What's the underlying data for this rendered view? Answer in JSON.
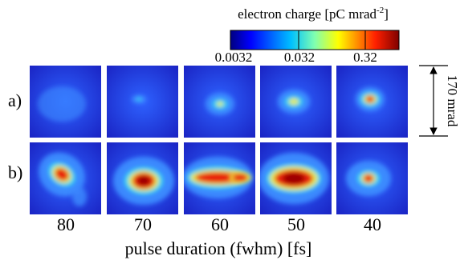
{
  "colorbar": {
    "label": "electron charge [pC mrad",
    "label_superscript": "-2",
    "label_end": "]",
    "ticks": [
      "0.0032",
      "0.032",
      "0.32"
    ]
  },
  "rows": [
    "a)",
    "b)"
  ],
  "columns": [
    "80",
    "70",
    "60",
    "50",
    "40"
  ],
  "x_axis_label": "pulse duration (fwhm) [fs]",
  "scale_label": "170 mrad"
}
